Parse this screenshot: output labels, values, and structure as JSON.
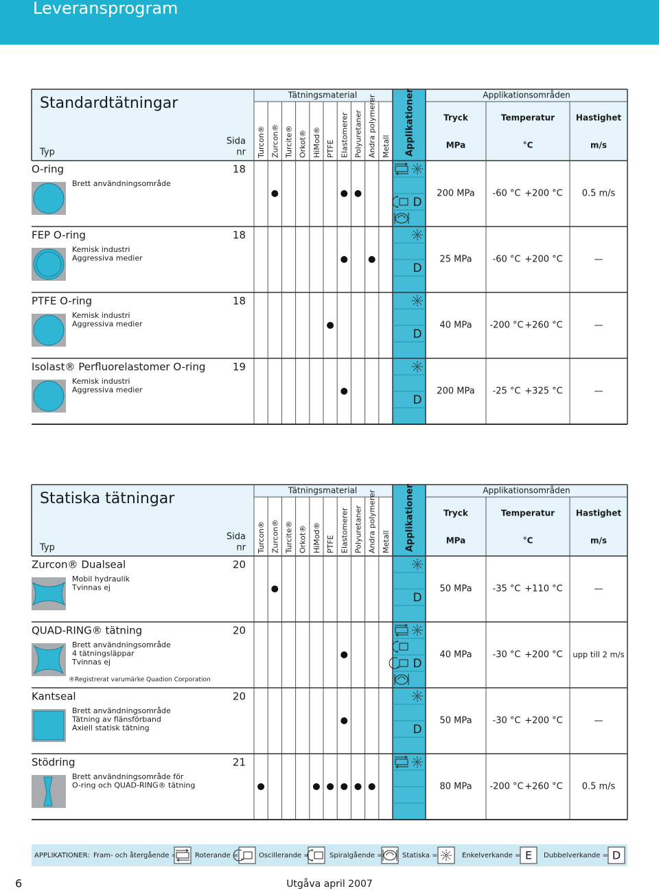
{
  "header": {
    "title": "Leveransprogram"
  },
  "tables": [
    {
      "title": "Standardtätningar",
      "typ": "Typ",
      "sida": "Sida",
      "nr": "nr",
      "material_header": "Tätningsmaterial",
      "materials": [
        "Turcon®",
        "Zurcon®",
        "Turcite®",
        "Orkot®",
        "HiMod®",
        "PTFE",
        "Elastomerer",
        "Polyuretaner",
        "Andra polymerer",
        "Metall"
      ],
      "app_header": "Applikationer",
      "areas_header": "Applikationsområden",
      "columns": [
        {
          "name": "Tryck",
          "unit": "MPa"
        },
        {
          "name": "Temperatur",
          "unit": "°C"
        },
        {
          "name": "Hastighet",
          "unit": "m/s"
        }
      ],
      "rows": [
        {
          "name": "O-ring",
          "sida": "18",
          "desc": [
            "Brett användningsområde"
          ],
          "materials": [
            false,
            true,
            false,
            false,
            false,
            false,
            true,
            true,
            false,
            false
          ],
          "icons": {
            "reciprocating": true,
            "static": true,
            "oscillating": true,
            "rotating": false,
            "spiral": true
          },
          "double": "D",
          "tryck": "200 MPa",
          "temp": [
            "-60 °C",
            "+200 °C"
          ],
          "hastighet": "0.5 m/s"
        },
        {
          "name": "FEP O-ring",
          "sida": "18",
          "desc": [
            "Kemisk industri",
            "Aggressiva medier"
          ],
          "materials": [
            false,
            false,
            false,
            false,
            false,
            false,
            true,
            false,
            true,
            false
          ],
          "icons": {
            "reciprocating": false,
            "static": true,
            "oscillating": false,
            "rotating": false,
            "spiral": false
          },
          "double": "D",
          "tryck": "25 MPa",
          "temp": [
            "-60 °C",
            "+200 °C"
          ],
          "hastighet": "—"
        },
        {
          "name": "PTFE O-ring",
          "sida": "18",
          "desc": [
            "Kemisk industri",
            "Aggressiva medier"
          ],
          "materials": [
            false,
            false,
            false,
            false,
            false,
            true,
            false,
            false,
            false,
            false
          ],
          "icons": {
            "reciprocating": false,
            "static": true,
            "oscillating": false,
            "rotating": false,
            "spiral": false
          },
          "double": "D",
          "tryck": "40 MPa",
          "temp": [
            "-200 °C",
            "+260 °C"
          ],
          "hastighet": "—"
        },
        {
          "name": "Isolast® Perfluorelastomer O-ring",
          "sida": "19",
          "desc": [
            "Kemisk industri",
            "Aggressiva medier"
          ],
          "materials": [
            false,
            false,
            false,
            false,
            false,
            false,
            true,
            false,
            false,
            false
          ],
          "icons": {
            "reciprocating": false,
            "static": true,
            "oscillating": false,
            "rotating": false,
            "spiral": false
          },
          "double": "D",
          "tryck": "200 MPa",
          "temp": [
            "-25 °C",
            "+325 °C"
          ],
          "hastighet": "—"
        }
      ]
    },
    {
      "title": "Statiska tätningar",
      "typ": "Typ",
      "sida": "Sida",
      "nr": "nr",
      "material_header": "Tätningsmaterial",
      "materials": [
        "Turcon®",
        "Zurcon®",
        "Turcite®",
        "Orkot®",
        "HiMod®",
        "PTFE",
        "Elastomerer",
        "Polyuretaner",
        "Andra polymerer",
        "Metall"
      ],
      "app_header": "Applikationer",
      "areas_header": "Applikationsområden",
      "columns": [
        {
          "name": "Tryck",
          "unit": "MPa"
        },
        {
          "name": "Temperatur",
          "unit": "°C"
        },
        {
          "name": "Hastighet",
          "unit": "m/s"
        }
      ],
      "rows": [
        {
          "name": "Zurcon® Dualseal",
          "sida": "20",
          "desc": [
            "Mobil hydraulik",
            "Tvinnas ej"
          ],
          "materials": [
            false,
            true,
            false,
            false,
            false,
            false,
            false,
            false,
            false,
            false
          ],
          "icons": {
            "reciprocating": false,
            "static": true,
            "oscillating": false,
            "rotating": false,
            "spiral": false
          },
          "double": "D",
          "tryck": "50 MPa",
          "temp": [
            "-35 °C",
            "+110 °C"
          ],
          "hastighet": "—"
        },
        {
          "name": "QUAD-RING® tätning",
          "sida": "20",
          "desc": [
            "Brett användningsområde",
            "4 tätningsläppar",
            "Tvinnas ej"
          ],
          "note": "®Registrerat varumärke Quadion Corporation",
          "materials": [
            false,
            false,
            false,
            false,
            false,
            false,
            true,
            false,
            false,
            false
          ],
          "icons": {
            "reciprocating": true,
            "static": true,
            "oscillating": true,
            "rotating": true,
            "spiral": true
          },
          "double": "D",
          "tryck": "40 MPa",
          "temp": [
            "-30 °C",
            "+200 °C"
          ],
          "hastighet": "upp till 2 m/s"
        },
        {
          "name": "Kantseal",
          "sida": "20",
          "desc": [
            "Brett användningsområde",
            "Tätning av flänsförband",
            "Axiell statisk tätning"
          ],
          "materials": [
            false,
            false,
            false,
            false,
            false,
            false,
            true,
            false,
            false,
            false
          ],
          "icons": {
            "reciprocating": false,
            "static": true,
            "oscillating": false,
            "rotating": false,
            "spiral": false
          },
          "double": "D",
          "tryck": "50 MPa",
          "temp": [
            "-30 °C",
            "+200 °C"
          ],
          "hastighet": "—"
        },
        {
          "name": "Stödring",
          "sida": "21",
          "desc": [
            "Brett användningsområde för",
            "O-ring och QUAD-RING® tätning"
          ],
          "materials": [
            true,
            false,
            false,
            false,
            true,
            true,
            true,
            true,
            true,
            false
          ],
          "icons": {
            "reciprocating": true,
            "static": true,
            "oscillating": false,
            "rotating": false,
            "spiral": false
          },
          "tryck": "80 MPa",
          "temp": [
            "-200 °C",
            "+260 °C"
          ],
          "hastighet": "0.5 m/s"
        }
      ]
    }
  ],
  "legend": {
    "label": "APPLIKATIONER:",
    "reciprocating": "Fram- och återgående =",
    "rotating": "Roterande =",
    "oscillating": "Oscillerande =",
    "spiral": "Spiralgående =",
    "static": "Statiska =",
    "single": "Enkelverkande =",
    "single_symbol": "E",
    "double": "Dubbelverkande =",
    "double_symbol": "D"
  },
  "footer": {
    "page": "6",
    "edition": "Utgåva april 2007"
  }
}
